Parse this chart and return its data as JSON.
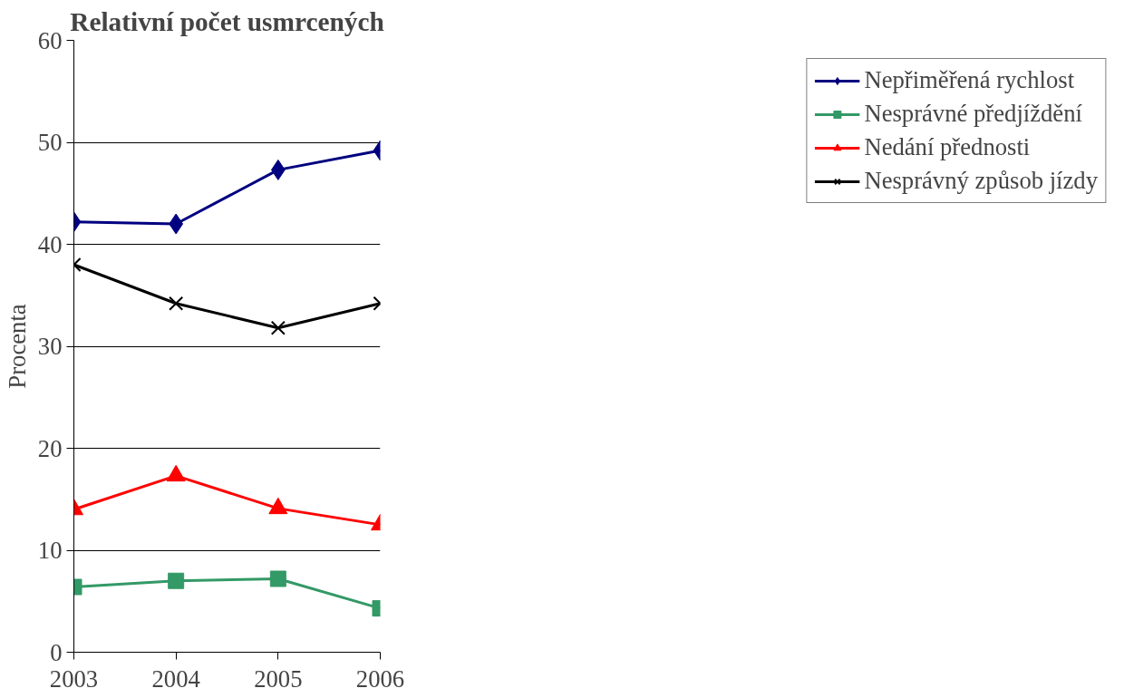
{
  "chart_data": {
    "type": "line",
    "title": "Relativní počet usmrcených",
    "ylabel": "Procenta",
    "x": [
      2003,
      2004,
      2005,
      2006
    ],
    "xlim": [
      2003,
      2006
    ],
    "xticks": [
      2003,
      2004,
      2005,
      2006
    ],
    "ylim": [
      0,
      60
    ],
    "yticks": [
      0,
      10,
      20,
      30,
      40,
      50,
      60
    ],
    "grid": "y",
    "legend": "right",
    "line_style": "solid",
    "series": [
      {
        "name": "Nepřiměřená rychlost",
        "color": "#000080",
        "marker": "diamond",
        "values": [
          42.2,
          42.0,
          47.3,
          49.2
        ]
      },
      {
        "name": "Nesprávné předjíždění",
        "color": "#339966",
        "marker": "square",
        "values": [
          6.4,
          7.0,
          7.2,
          4.3
        ]
      },
      {
        "name": "Nedání přednosti",
        "color": "#ff0000",
        "marker": "triangle",
        "values": [
          14.0,
          17.3,
          14.1,
          12.5
        ]
      },
      {
        "name": "Nesprávný způsob jízdy",
        "color": "#000000",
        "marker": "cross",
        "values": [
          38.0,
          34.2,
          31.8,
          34.2
        ]
      }
    ]
  }
}
